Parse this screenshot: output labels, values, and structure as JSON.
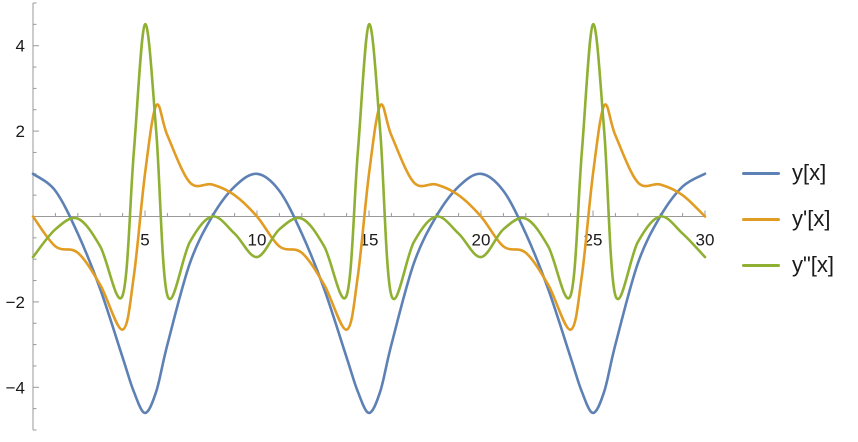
{
  "chart_data": {
    "type": "line",
    "title": "",
    "xlabel": "",
    "ylabel": "",
    "xlim": [
      0,
      30
    ],
    "ylim": [
      -5,
      5
    ],
    "grid": false,
    "legend_position": "right",
    "x_ticks": [
      5,
      10,
      15,
      20,
      25,
      30
    ],
    "y_ticks": [
      -4,
      -2,
      2,
      4
    ],
    "x_tick_labels": [
      "5",
      "10",
      "15",
      "20",
      "25",
      "30"
    ],
    "y_tick_labels": [
      "−4",
      "−2",
      "2",
      "4"
    ],
    "x": [
      0,
      1,
      2,
      3,
      4,
      4.5,
      5,
      5.5,
      6,
      7,
      8,
      9,
      10,
      11,
      12,
      13,
      14,
      14.5,
      15,
      15.5,
      16,
      17,
      18,
      19,
      20,
      21,
      22,
      23,
      24,
      24.5,
      25,
      25.5,
      26,
      27,
      28,
      29,
      30
    ],
    "series": [
      {
        "name": "y[x]",
        "color": "#5e81b5",
        "values": [
          1.0,
          0.6,
          -0.4,
          -1.7,
          -3.3,
          -4.1,
          -4.6,
          -4.1,
          -3.0,
          -1.1,
          0.0,
          0.7,
          1.0,
          0.6,
          -0.4,
          -1.7,
          -3.3,
          -4.1,
          -4.6,
          -4.1,
          -3.0,
          -1.1,
          0.0,
          0.7,
          1.0,
          0.6,
          -0.4,
          -1.7,
          -3.3,
          -4.1,
          -4.6,
          -4.1,
          -3.0,
          -1.1,
          0.0,
          0.7,
          1.0
        ]
      },
      {
        "name": "y'[x]",
        "color": "#e19c24",
        "values": [
          0.0,
          -0.7,
          -0.85,
          -1.6,
          -2.65,
          -1.4,
          1.0,
          2.6,
          1.9,
          0.8,
          0.75,
          0.5,
          0.0,
          -0.7,
          -0.85,
          -1.6,
          -2.65,
          -1.4,
          1.0,
          2.6,
          1.9,
          0.8,
          0.75,
          0.5,
          0.0,
          -0.7,
          -0.85,
          -1.6,
          -2.65,
          -1.4,
          1.0,
          2.6,
          1.9,
          0.8,
          0.75,
          0.5,
          0.0
        ]
      },
      {
        "name": "y\"[x]",
        "color": "#8fb032",
        "values": [
          -0.95,
          -0.3,
          -0.05,
          -0.7,
          -1.85,
          1.5,
          4.5,
          2.0,
          -1.85,
          -0.6,
          0.0,
          -0.4,
          -0.95,
          -0.3,
          -0.05,
          -0.7,
          -1.85,
          1.5,
          4.5,
          2.0,
          -1.85,
          -0.6,
          0.0,
          -0.4,
          -0.95,
          -0.3,
          -0.05,
          -0.7,
          -1.85,
          1.5,
          4.5,
          2.0,
          -1.85,
          -0.6,
          0.0,
          -0.4,
          -0.95
        ]
      }
    ]
  }
}
